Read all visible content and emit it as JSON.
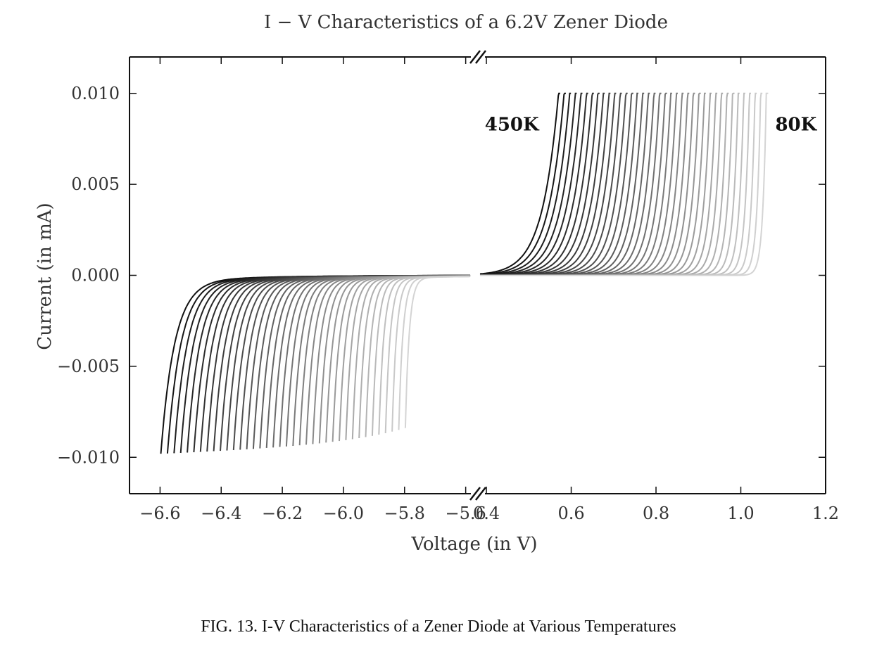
{
  "chart_data": {
    "type": "line",
    "title": "I − V Characteristics of a 6.2V Zener Diode",
    "xlabel": "Voltage (in V)",
    "ylabel": "Current (in mA)",
    "ylim": [
      -0.012,
      0.012
    ],
    "yticks": [
      {
        "value": 0.01,
        "label": "0.010"
      },
      {
        "value": 0.005,
        "label": "0.005"
      },
      {
        "value": 0.0,
        "label": "0.000"
      },
      {
        "value": -0.005,
        "label": "−0.005"
      },
      {
        "value": -0.01,
        "label": "−0.010"
      }
    ],
    "broken_x_axis": true,
    "x_segments": [
      {
        "xlim": [
          -6.7,
          -5.56
        ],
        "ticks": [
          {
            "value": -6.6,
            "label": "−6.6"
          },
          {
            "value": -6.4,
            "label": "−6.4"
          },
          {
            "value": -6.2,
            "label": "−6.2"
          },
          {
            "value": -6.0,
            "label": "−6.0"
          },
          {
            "value": -5.8,
            "label": "−5.8"
          },
          {
            "value": -5.6,
            "label": "−5.6"
          }
        ]
      },
      {
        "xlim": [
          0.38,
          1.2
        ],
        "ticks": [
          {
            "value": 0.4,
            "label": "0.4"
          },
          {
            "value": 0.6,
            "label": "0.6"
          },
          {
            "value": 0.8,
            "label": "0.8"
          },
          {
            "value": 1.0,
            "label": "1.0"
          },
          {
            "value": 1.2,
            "label": "1.2"
          }
        ]
      }
    ],
    "series_family": {
      "count": 38,
      "temperatures_K": [
        450,
        80
      ],
      "color_scale": [
        "#111111",
        "#d4d4d4"
      ],
      "reverse_breakdown_V": [
        -6.6,
        -5.8
      ],
      "reverse_current_min": -0.01,
      "forward_knee_V": [
        0.57,
        1.06
      ],
      "forward_current_max": 0.01
    },
    "annotations": [
      {
        "text": "450K",
        "x": 0.46,
        "y": 0.0083
      },
      {
        "text": "80K",
        "x": 1.13,
        "y": 0.0083
      }
    ],
    "grid": false
  },
  "caption": "FIG. 13. I-V Characteristics of a Zener Diode at Various Temperatures"
}
